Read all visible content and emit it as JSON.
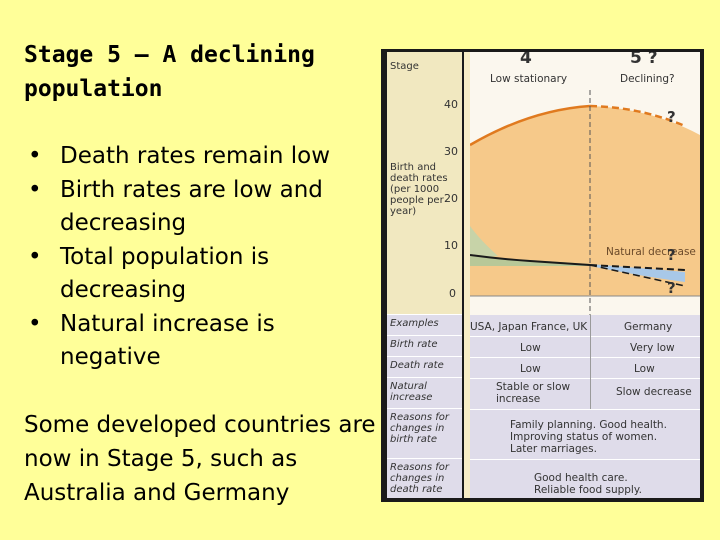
{
  "slide": {
    "title": "Stage 5 – A declining population",
    "bullets": [
      "Death rates remain low",
      "Birth rates are low and decreasing",
      "Total population is decreasing",
      "Natural increase is negative"
    ],
    "note": "Some developed countries are now in Stage 5, such as Australia and Germany"
  },
  "diagram": {
    "row_labels": {
      "stage": "Stage",
      "rates": "Birth and death rates (per 1000 people per year)",
      "examples": "Examples",
      "birth_rate": "Birth rate",
      "death_rate": "Death rate",
      "natural_increase": "Natural increase",
      "reasons_birth": "Reasons for changes in birth rate",
      "reasons_death": "Reasons for changes in death rate"
    },
    "stage4": {
      "number": "4",
      "name": "Low stationary",
      "examples": "USA, Japan France, UK",
      "birth_rate": "Low",
      "death_rate": "Low",
      "natural_increase": "Stable or slow increase"
    },
    "stage5": {
      "number": "5 ?",
      "name": "Declining?",
      "examples": "Germany",
      "birth_rate": "Very low",
      "death_rate": "Low",
      "natural_increase": "Slow decrease"
    },
    "chart": {
      "y_ticks": [
        "40",
        "30",
        "20",
        "10",
        "0"
      ],
      "natural_decrease_label": "Natural decrease",
      "question_marks": [
        "?",
        "?",
        "?"
      ]
    },
    "reasons_birth": "Family planning. Good health. Improving status of women. Later marriages.",
    "reasons_death": "Good health care. Reliable food supply.",
    "colors": {
      "population_area": "#f6c98a",
      "birth_area": "#c7d3a8",
      "decrease_area": "#a8c8e8",
      "curve": "#e07a1f"
    }
  }
}
